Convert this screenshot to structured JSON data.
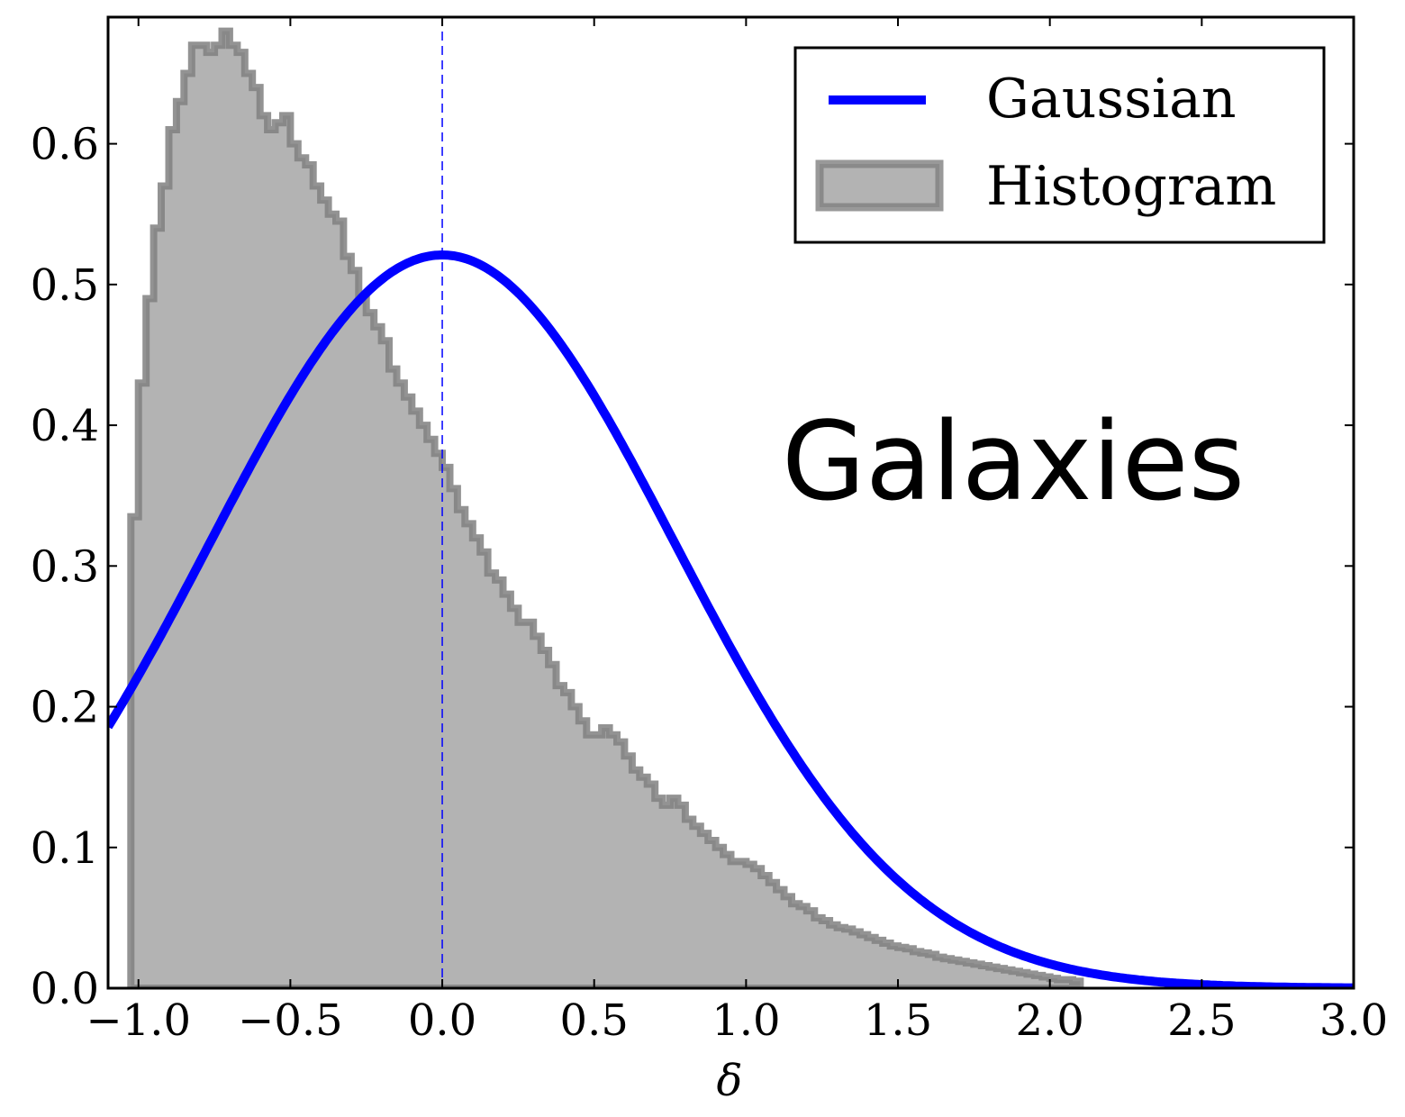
{
  "chart_data": {
    "type": "line",
    "title": "",
    "xlabel": "δ",
    "ylabel": "",
    "xlim": [
      -1.1,
      3.0
    ],
    "ylim": [
      0.0,
      0.69
    ],
    "grid": false,
    "legend_position": "top-right",
    "x_ticks": [
      -1.0,
      -0.5,
      0.0,
      0.5,
      1.0,
      1.5,
      2.0,
      2.5,
      3.0
    ],
    "x_tick_labels": [
      "−1.0",
      "−0.5",
      "0.0",
      "0.5",
      "1.0",
      "1.5",
      "2.0",
      "2.5",
      "3.0"
    ],
    "y_ticks": [
      0.0,
      0.1,
      0.2,
      0.3,
      0.4,
      0.5,
      0.6
    ],
    "y_tick_labels": [
      "0.0",
      "0.1",
      "0.2",
      "0.3",
      "0.4",
      "0.5",
      "0.6"
    ],
    "annotation": "Galaxies",
    "vline_x": 0.0,
    "colors": {
      "gaussian": "#0000ff",
      "hist_fill": "#b3b3b3",
      "hist_edge": "#808080",
      "vline": "#0000ff"
    },
    "series": [
      {
        "name": "Gaussian",
        "type": "line",
        "mean": 0.0,
        "sigma": 0.766,
        "peak": 0.521
      },
      {
        "name": "Histogram",
        "type": "step-filled",
        "bin_start": -1.025,
        "bin_width": 0.025,
        "values": [
          0.335,
          0.43,
          0.49,
          0.54,
          0.57,
          0.61,
          0.63,
          0.65,
          0.67,
          0.67,
          0.665,
          0.67,
          0.68,
          0.67,
          0.665,
          0.65,
          0.64,
          0.62,
          0.61,
          0.615,
          0.62,
          0.6,
          0.59,
          0.585,
          0.57,
          0.56,
          0.55,
          0.545,
          0.52,
          0.51,
          0.49,
          0.48,
          0.47,
          0.46,
          0.44,
          0.43,
          0.42,
          0.41,
          0.4,
          0.39,
          0.38,
          0.37,
          0.355,
          0.34,
          0.33,
          0.32,
          0.31,
          0.295,
          0.29,
          0.28,
          0.27,
          0.26,
          0.26,
          0.25,
          0.24,
          0.23,
          0.215,
          0.21,
          0.2,
          0.19,
          0.18,
          0.18,
          0.185,
          0.18,
          0.175,
          0.165,
          0.155,
          0.15,
          0.145,
          0.135,
          0.13,
          0.135,
          0.13,
          0.12,
          0.115,
          0.11,
          0.105,
          0.1,
          0.095,
          0.09,
          0.09,
          0.088,
          0.085,
          0.08,
          0.075,
          0.07,
          0.065,
          0.06,
          0.058,
          0.055,
          0.05,
          0.048,
          0.045,
          0.043,
          0.042,
          0.04,
          0.038,
          0.036,
          0.034,
          0.032,
          0.03,
          0.029,
          0.028,
          0.026,
          0.025,
          0.024,
          0.022,
          0.021,
          0.02,
          0.019,
          0.018,
          0.017,
          0.016,
          0.015,
          0.014,
          0.013,
          0.012,
          0.011,
          0.01,
          0.009,
          0.008,
          0.007,
          0.006,
          0.006,
          0.005
        ]
      }
    ]
  }
}
